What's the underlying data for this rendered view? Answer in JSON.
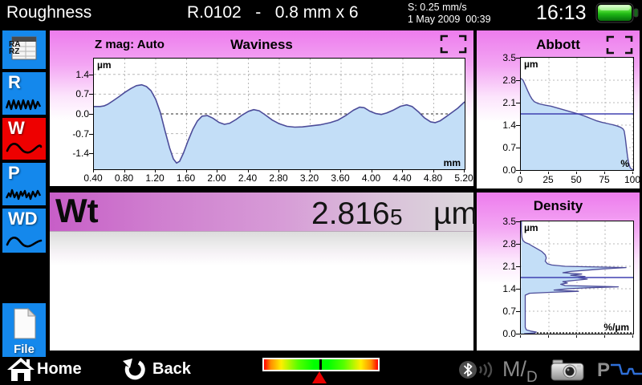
{
  "topbar": {
    "app_title": "Roughness",
    "measurement_header": "R.0102   -   0.8 mm x 6",
    "speed": "S: 0.25 mm/s",
    "datetime": "1 May 2009  00:39",
    "clock": "16:13",
    "battery": "full"
  },
  "sidebar": {
    "ra": "RA",
    "rz": "RZ",
    "r_label": "R",
    "w_label": "W",
    "p_label": "P",
    "wd_label": "WD",
    "file_label": "File"
  },
  "waviness_header": {
    "z_mag": "Z mag: Auto"
  },
  "wt": {
    "param": "Wt",
    "value": "2.816",
    "value_small": "5",
    "unit": "µm"
  },
  "statusbar": {
    "home_label": "Home",
    "back_label": "Back",
    "m_label": "M",
    "slash": "/",
    "d_label": "D",
    "p_label": "P"
  },
  "colors": {
    "accent_blue": "#1488ec",
    "active_red": "#ee0000",
    "panel_magenta": "#ed7ced",
    "chart_fill": "#c3def7",
    "chart_line": "#4c4c99",
    "mean_line": "#4040b0",
    "battery_green": "#35d41c"
  },
  "chart_data": [
    {
      "id": "waviness",
      "type": "area",
      "title": "Waviness",
      "x_unit": "mm",
      "y_unit": "µm",
      "x_range": [
        0.4,
        5.2
      ],
      "y_range": [
        -1.96,
        1.96
      ],
      "grid": "dashed",
      "x_ticks": [
        "0.40",
        "0.80",
        "1.20",
        "1.60",
        "2.00",
        "2.40",
        "2.80",
        "3.20",
        "3.60",
        "4.00",
        "4.40",
        "4.80",
        "5.20"
      ],
      "y_ticks": [
        "1.4",
        "0.7",
        "0.0",
        "-0.7",
        "-1.4"
      ],
      "points": [
        [
          0.4,
          0.26
        ],
        [
          0.48,
          0.26
        ],
        [
          0.53,
          0.28
        ],
        [
          0.58,
          0.34
        ],
        [
          0.65,
          0.47
        ],
        [
          0.72,
          0.6
        ],
        [
          0.8,
          0.76
        ],
        [
          0.88,
          0.9
        ],
        [
          0.95,
          1.0
        ],
        [
          1.02,
          1.03
        ],
        [
          1.08,
          0.97
        ],
        [
          1.14,
          0.82
        ],
        [
          1.2,
          0.52
        ],
        [
          1.26,
          0.05
        ],
        [
          1.32,
          -0.6
        ],
        [
          1.38,
          -1.2
        ],
        [
          1.43,
          -1.6
        ],
        [
          1.47,
          -1.74
        ],
        [
          1.51,
          -1.68
        ],
        [
          1.56,
          -1.38
        ],
        [
          1.62,
          -0.95
        ],
        [
          1.68,
          -0.55
        ],
        [
          1.74,
          -0.25
        ],
        [
          1.8,
          -0.08
        ],
        [
          1.87,
          -0.06
        ],
        [
          1.94,
          -0.15
        ],
        [
          2.02,
          -0.3
        ],
        [
          2.09,
          -0.37
        ],
        [
          2.16,
          -0.33
        ],
        [
          2.24,
          -0.2
        ],
        [
          2.32,
          -0.04
        ],
        [
          2.4,
          0.09
        ],
        [
          2.47,
          0.15
        ],
        [
          2.54,
          0.11
        ],
        [
          2.62,
          -0.04
        ],
        [
          2.71,
          -0.22
        ],
        [
          2.8,
          -0.35
        ],
        [
          2.9,
          -0.44
        ],
        [
          3.0,
          -0.47
        ],
        [
          3.1,
          -0.46
        ],
        [
          3.22,
          -0.42
        ],
        [
          3.34,
          -0.38
        ],
        [
          3.46,
          -0.31
        ],
        [
          3.56,
          -0.22
        ],
        [
          3.66,
          -0.06
        ],
        [
          3.76,
          0.13
        ],
        [
          3.84,
          0.24
        ],
        [
          3.9,
          0.22
        ],
        [
          3.97,
          0.1
        ],
        [
          4.05,
          0.01
        ],
        [
          4.12,
          -0.02
        ],
        [
          4.19,
          0.03
        ],
        [
          4.28,
          0.14
        ],
        [
          4.37,
          0.27
        ],
        [
          4.45,
          0.32
        ],
        [
          4.52,
          0.26
        ],
        [
          4.6,
          0.08
        ],
        [
          4.68,
          -0.14
        ],
        [
          4.76,
          -0.28
        ],
        [
          4.82,
          -0.31
        ],
        [
          4.88,
          -0.25
        ],
        [
          4.95,
          -0.12
        ],
        [
          5.03,
          0.04
        ],
        [
          5.11,
          0.2
        ],
        [
          5.2,
          0.43
        ]
      ]
    },
    {
      "id": "abbott",
      "type": "area",
      "title": "Abbott",
      "x_unit": "%",
      "y_unit": "µm",
      "x_range": [
        0,
        100
      ],
      "y_range": [
        0,
        3.5
      ],
      "grid": "dashed",
      "x_ticks": [
        "0",
        "25",
        "50",
        "75",
        "100"
      ],
      "y_ticks": [
        "3.5",
        "2.8",
        "2.1",
        "1.4",
        "0.7",
        "0.0"
      ],
      "mean_line": 1.75,
      "points": [
        [
          0,
          2.86
        ],
        [
          2,
          2.8
        ],
        [
          4,
          2.64
        ],
        [
          6,
          2.48
        ],
        [
          8,
          2.33
        ],
        [
          10,
          2.21
        ],
        [
          12,
          2.13
        ],
        [
          15,
          2.08
        ],
        [
          18,
          2.05
        ],
        [
          22,
          2.02
        ],
        [
          27,
          1.99
        ],
        [
          32,
          1.94
        ],
        [
          37,
          1.89
        ],
        [
          42,
          1.84
        ],
        [
          47,
          1.79
        ],
        [
          52,
          1.74
        ],
        [
          57,
          1.68
        ],
        [
          62,
          1.61
        ],
        [
          67,
          1.54
        ],
        [
          72,
          1.49
        ],
        [
          77,
          1.45
        ],
        [
          82,
          1.41
        ],
        [
          86,
          1.37
        ],
        [
          89,
          1.33
        ],
        [
          91,
          1.28
        ],
        [
          92,
          1.22
        ],
        [
          93,
          1.0
        ],
        [
          94,
          0.7
        ],
        [
          95,
          0.42
        ],
        [
          96,
          0.22
        ],
        [
          97,
          0.1
        ],
        [
          98,
          0.04
        ],
        [
          100,
          0.01
        ]
      ]
    },
    {
      "id": "density",
      "type": "area_horizontal",
      "title": "Density",
      "x_unit": "%/µm",
      "y_unit": "µm",
      "x_range": [
        0,
        100
      ],
      "y_range": [
        0,
        3.5
      ],
      "grid": "dashed",
      "x_tick_count": 5,
      "y_ticks": [
        "3.5",
        "2.8",
        "2.1",
        "1.4",
        "0.7",
        "0.0"
      ],
      "mean_line": 1.75,
      "points": [
        [
          3.5,
          0.5
        ],
        [
          3.2,
          0.5
        ],
        [
          3.0,
          1
        ],
        [
          2.9,
          2
        ],
        [
          2.84,
          4
        ],
        [
          2.8,
          7
        ],
        [
          2.74,
          10
        ],
        [
          2.66,
          14
        ],
        [
          2.56,
          19
        ],
        [
          2.46,
          22
        ],
        [
          2.36,
          23
        ],
        [
          2.26,
          22
        ],
        [
          2.18,
          24
        ],
        [
          2.14,
          28
        ],
        [
          2.1,
          40
        ],
        [
          2.06,
          95
        ],
        [
          2.02,
          75
        ],
        [
          1.98,
          60
        ],
        [
          1.94,
          45
        ],
        [
          1.9,
          38
        ],
        [
          1.86,
          55
        ],
        [
          1.82,
          45
        ],
        [
          1.78,
          58
        ],
        [
          1.74,
          52
        ],
        [
          1.7,
          60
        ],
        [
          1.66,
          48
        ],
        [
          1.62,
          38
        ],
        [
          1.58,
          42
        ],
        [
          1.54,
          36
        ],
        [
          1.5,
          40
        ],
        [
          1.46,
          88
        ],
        [
          1.43,
          60
        ],
        [
          1.4,
          42
        ],
        [
          1.36,
          30
        ],
        [
          1.32,
          52
        ],
        [
          1.29,
          28
        ],
        [
          1.26,
          8
        ],
        [
          1.2,
          4
        ],
        [
          1.0,
          4
        ],
        [
          0.8,
          4
        ],
        [
          0.6,
          4
        ],
        [
          0.4,
          4
        ],
        [
          0.2,
          4
        ],
        [
          0.12,
          5
        ],
        [
          0.08,
          9
        ],
        [
          0.05,
          14
        ],
        [
          0.02,
          12
        ],
        [
          0.0,
          3
        ]
      ]
    }
  ]
}
